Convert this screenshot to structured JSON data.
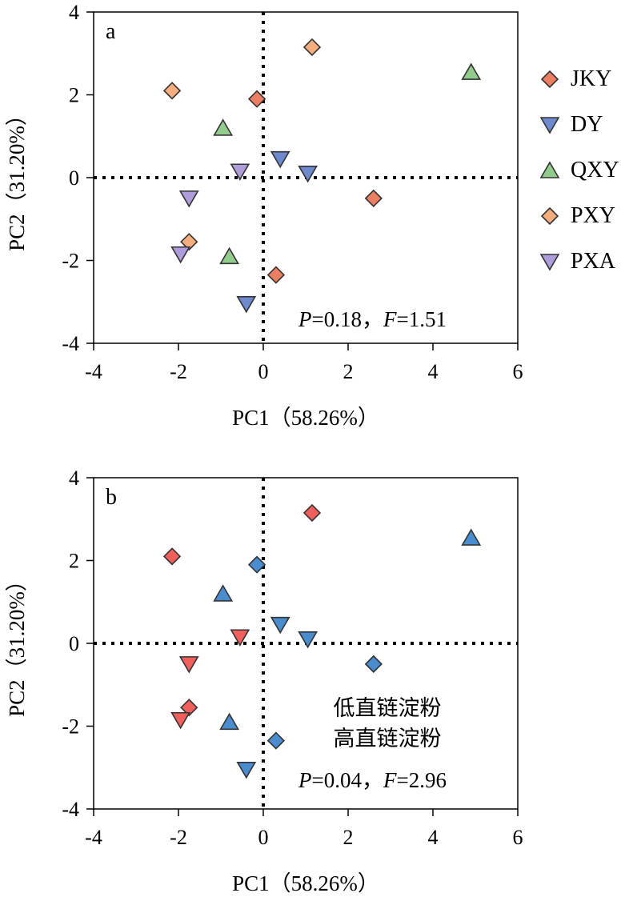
{
  "chart_data": [
    {
      "type": "scatter",
      "panel_label": "a",
      "xlabel": "PC1（58.26%）",
      "ylabel": "PC2（31.20%）",
      "xlim": [
        -4,
        6
      ],
      "ylim": [
        -4,
        4
      ],
      "x_ticks": [
        -4,
        -2,
        0,
        2,
        4,
        6
      ],
      "y_ticks": [
        -4,
        -2,
        0,
        2,
        4
      ],
      "reference_lines": {
        "x": 0,
        "y": 0,
        "style": "dotted"
      },
      "stat": {
        "P_label": "P",
        "P_value": "=0.18，",
        "F_label": "F",
        "F_value": "=1.51"
      },
      "legend": {
        "position": "right",
        "entries": [
          {
            "label": "JKY",
            "marker": "diamond",
            "color": "#EC7E62"
          },
          {
            "label": "DY",
            "marker": "triangle-down",
            "color": "#6F89CE"
          },
          {
            "label": "QXY",
            "marker": "triangle-up",
            "color": "#92CC8D"
          },
          {
            "label": "PXY",
            "marker": "diamond",
            "color": "#F4AD7C"
          },
          {
            "label": "PXA",
            "marker": "triangle-down",
            "color": "#AE9CDB"
          }
        ]
      },
      "series": [
        {
          "name": "JKY",
          "marker": "diamond",
          "color": "#EC7E62",
          "x": [
            -0.15,
            2.6,
            0.3
          ],
          "y": [
            1.9,
            -0.5,
            -2.35
          ]
        },
        {
          "name": "DY",
          "marker": "triangle-down",
          "color": "#6F89CE",
          "x": [
            0.4,
            1.05,
            -0.4
          ],
          "y": [
            0.45,
            0.1,
            -3.05
          ]
        },
        {
          "name": "QXY",
          "marker": "triangle-up",
          "color": "#92CC8D",
          "x": [
            4.9,
            -0.95,
            -0.8
          ],
          "y": [
            2.55,
            1.2,
            -1.9
          ]
        },
        {
          "name": "PXY",
          "marker": "diamond",
          "color": "#F4AD7C",
          "x": [
            1.15,
            -2.15,
            -1.75
          ],
          "y": [
            3.15,
            2.1,
            -1.55
          ]
        },
        {
          "name": "PXA",
          "marker": "triangle-down",
          "color": "#AE9CDB",
          "x": [
            -0.55,
            -1.75,
            -1.95
          ],
          "y": [
            0.15,
            -0.5,
            -1.85
          ]
        }
      ]
    },
    {
      "type": "scatter",
      "panel_label": "b",
      "xlabel": "PC1（58.26%）",
      "ylabel": "PC2（31.20%）",
      "xlim": [
        -4,
        6
      ],
      "ylim": [
        -4,
        4
      ],
      "x_ticks": [
        -4,
        -2,
        0,
        2,
        4,
        6
      ],
      "y_ticks": [
        -4,
        -2,
        0,
        2,
        4
      ],
      "reference_lines": {
        "x": 0,
        "y": 0,
        "style": "dotted"
      },
      "stat": {
        "P_label": "P",
        "P_value": "=0.04，",
        "F_label": "F",
        "F_value": "=2.96"
      },
      "group_labels": [
        {
          "text": "低直链淀粉",
          "color": "#F05F5C"
        },
        {
          "text": "高直链淀粉",
          "color": "#4A8CD0"
        }
      ],
      "series": [
        {
          "name": "低直链淀粉",
          "color": "#F05F5C",
          "points": [
            {
              "x": 1.15,
              "y": 3.15,
              "marker": "diamond"
            },
            {
              "x": -2.15,
              "y": 2.1,
              "marker": "diamond"
            },
            {
              "x": -0.55,
              "y": 0.15,
              "marker": "triangle-down"
            },
            {
              "x": -1.75,
              "y": -0.5,
              "marker": "triangle-down"
            },
            {
              "x": -1.75,
              "y": -1.55,
              "marker": "diamond"
            },
            {
              "x": -1.95,
              "y": -1.85,
              "marker": "triangle-down"
            }
          ]
        },
        {
          "name": "高直链淀粉",
          "color": "#4A8CD0",
          "points": [
            {
              "x": 4.9,
              "y": 2.55,
              "marker": "triangle-up"
            },
            {
              "x": -0.15,
              "y": 1.9,
              "marker": "diamond"
            },
            {
              "x": -0.95,
              "y": 1.2,
              "marker": "triangle-up"
            },
            {
              "x": 0.4,
              "y": 0.45,
              "marker": "triangle-down"
            },
            {
              "x": 1.05,
              "y": 0.1,
              "marker": "triangle-down"
            },
            {
              "x": 2.6,
              "y": -0.5,
              "marker": "diamond"
            },
            {
              "x": -0.8,
              "y": -1.9,
              "marker": "triangle-up"
            },
            {
              "x": 0.3,
              "y": -2.35,
              "marker": "diamond"
            },
            {
              "x": -0.4,
              "y": -3.05,
              "marker": "triangle-down"
            }
          ]
        }
      ]
    }
  ]
}
